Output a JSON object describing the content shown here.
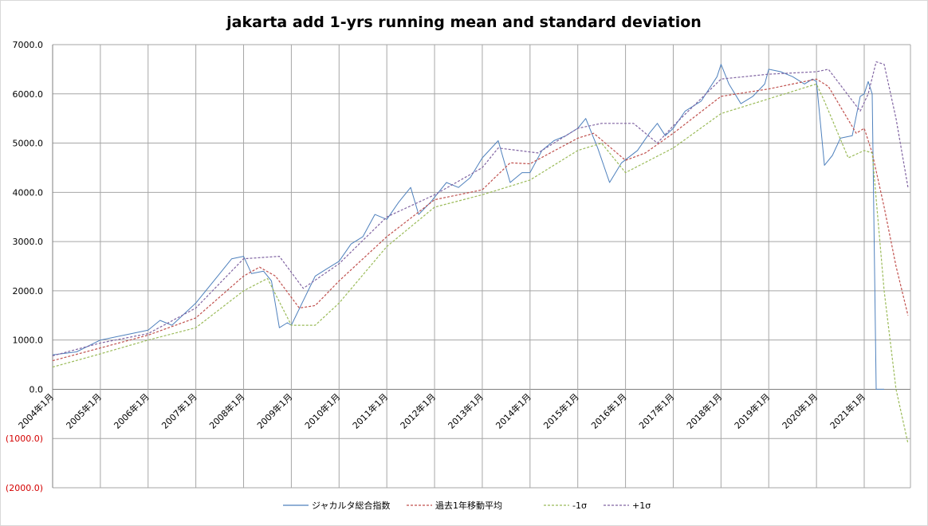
{
  "chart_data": {
    "type": "line",
    "title": "jakarta add 1-yrs running mean and standard deviation",
    "xlabel": "",
    "ylabel": "",
    "ylim": [
      -2000,
      7000
    ],
    "y_ticks": [
      7000,
      6000,
      5000,
      4000,
      3000,
      2000,
      1000,
      0,
      -1000,
      -2000
    ],
    "y_tick_labels": [
      "7000.0",
      "6000.0",
      "5000.0",
      "4000.0",
      "3000.0",
      "2000.0",
      "1000.0",
      "0.0",
      "(1000.0)",
      "(2000.0)"
    ],
    "x_tick_labels": [
      "2004年1月",
      "2005年1月",
      "2006年1月",
      "2007年1月",
      "2008年1月",
      "2009年1月",
      "2010年1月",
      "2011年1月",
      "2012年1月",
      "2013年1月",
      "2014年1月",
      "2015年1月",
      "2016年1月",
      "2017年1月",
      "2018年1月",
      "2019年1月",
      "2020年1月",
      "2021年1月"
    ],
    "grid": true,
    "legend_position": "bottom",
    "series": [
      {
        "name": "ジャカルタ総合指数",
        "color": "#4f81bd",
        "dash": "solid",
        "points": [
          [
            "2004-01",
            700
          ],
          [
            "2004-07",
            760
          ],
          [
            "2005-01",
            1000
          ],
          [
            "2005-07",
            1100
          ],
          [
            "2006-01",
            1200
          ],
          [
            "2006-04",
            1400
          ],
          [
            "2006-07",
            1300
          ],
          [
            "2007-01",
            1750
          ],
          [
            "2007-07",
            2350
          ],
          [
            "2007-10",
            2650
          ],
          [
            "2008-01",
            2700
          ],
          [
            "2008-03",
            2350
          ],
          [
            "2008-06",
            2400
          ],
          [
            "2008-08",
            2200
          ],
          [
            "2008-10",
            1250
          ],
          [
            "2008-12",
            1350
          ],
          [
            "2009-01",
            1300
          ],
          [
            "2009-04",
            1800
          ],
          [
            "2009-07",
            2300
          ],
          [
            "2009-10",
            2450
          ],
          [
            "2010-01",
            2600
          ],
          [
            "2010-04",
            2950
          ],
          [
            "2010-07",
            3100
          ],
          [
            "2010-10",
            3550
          ],
          [
            "2011-01",
            3450
          ],
          [
            "2011-04",
            3800
          ],
          [
            "2011-07",
            4100
          ],
          [
            "2011-09",
            3550
          ],
          [
            "2011-12",
            3800
          ],
          [
            "2012-04",
            4200
          ],
          [
            "2012-07",
            4100
          ],
          [
            "2012-10",
            4300
          ],
          [
            "2013-01",
            4700
          ],
          [
            "2013-05",
            5050
          ],
          [
            "2013-08",
            4200
          ],
          [
            "2013-11",
            4400
          ],
          [
            "2014-01",
            4400
          ],
          [
            "2014-04",
            4850
          ],
          [
            "2014-07",
            5050
          ],
          [
            "2014-10",
            5150
          ],
          [
            "2015-01",
            5300
          ],
          [
            "2015-03",
            5500
          ],
          [
            "2015-06",
            4900
          ],
          [
            "2015-09",
            4200
          ],
          [
            "2015-12",
            4600
          ],
          [
            "2016-04",
            4850
          ],
          [
            "2016-07",
            5200
          ],
          [
            "2016-09",
            5400
          ],
          [
            "2016-11",
            5150
          ],
          [
            "2017-01",
            5300
          ],
          [
            "2017-04",
            5650
          ],
          [
            "2017-08",
            5850
          ],
          [
            "2017-12",
            6350
          ],
          [
            "2018-01",
            6600
          ],
          [
            "2018-03",
            6200
          ],
          [
            "2018-06",
            5800
          ],
          [
            "2018-09",
            5950
          ],
          [
            "2018-12",
            6200
          ],
          [
            "2019-01",
            6500
          ],
          [
            "2019-04",
            6450
          ],
          [
            "2019-07",
            6350
          ],
          [
            "2019-10",
            6200
          ],
          [
            "2019-12",
            6300
          ],
          [
            "2020-01",
            6250
          ],
          [
            "2020-03",
            4550
          ],
          [
            "2020-05",
            4750
          ],
          [
            "2020-07",
            5100
          ],
          [
            "2020-10",
            5150
          ],
          [
            "2020-12",
            5950
          ],
          [
            "2021-01",
            6000
          ],
          [
            "2021-02",
            6250
          ],
          [
            "2021-03",
            6000
          ],
          [
            "2021-04",
            0
          ],
          [
            "2021-06",
            0
          ]
        ]
      },
      {
        "name": "過去1年移動平均",
        "color": "#c0504d",
        "dash": "dashed",
        "points": [
          [
            "2004-01",
            580
          ],
          [
            "2005-01",
            840
          ],
          [
            "2006-01",
            1100
          ],
          [
            "2007-01",
            1450
          ],
          [
            "2008-01",
            2300
          ],
          [
            "2008-05",
            2480
          ],
          [
            "2008-09",
            2300
          ],
          [
            "2009-03",
            1650
          ],
          [
            "2009-07",
            1700
          ],
          [
            "2010-01",
            2200
          ],
          [
            "2011-01",
            3100
          ],
          [
            "2012-01",
            3850
          ],
          [
            "2013-01",
            4050
          ],
          [
            "2013-08",
            4600
          ],
          [
            "2014-01",
            4580
          ],
          [
            "2015-01",
            5100
          ],
          [
            "2015-05",
            5200
          ],
          [
            "2016-01",
            4650
          ],
          [
            "2016-06",
            4800
          ],
          [
            "2017-01",
            5200
          ],
          [
            "2018-01",
            5950
          ],
          [
            "2019-01",
            6100
          ],
          [
            "2020-01",
            6300
          ],
          [
            "2020-04",
            6150
          ],
          [
            "2020-11",
            5200
          ],
          [
            "2021-01",
            5300
          ],
          [
            "2021-03",
            4800
          ],
          [
            "2021-06",
            3700
          ],
          [
            "2021-09",
            2500
          ],
          [
            "2021-12",
            1500
          ]
        ]
      },
      {
        "name": "-1σ",
        "color": "#9bbb59",
        "dash": "dashed",
        "points": [
          [
            "2004-01",
            450
          ],
          [
            "2005-01",
            720
          ],
          [
            "2006-01",
            1000
          ],
          [
            "2007-01",
            1250
          ],
          [
            "2008-01",
            2000
          ],
          [
            "2008-07",
            2250
          ],
          [
            "2009-01",
            1300
          ],
          [
            "2009-07",
            1300
          ],
          [
            "2010-01",
            1750
          ],
          [
            "2011-01",
            2900
          ],
          [
            "2012-01",
            3700
          ],
          [
            "2013-01",
            3950
          ],
          [
            "2014-01",
            4250
          ],
          [
            "2015-01",
            4850
          ],
          [
            "2015-07",
            5000
          ],
          [
            "2016-01",
            4400
          ],
          [
            "2017-01",
            4900
          ],
          [
            "2018-01",
            5600
          ],
          [
            "2019-01",
            5900
          ],
          [
            "2020-01",
            6200
          ],
          [
            "2020-03",
            5850
          ],
          [
            "2020-09",
            4700
          ],
          [
            "2021-01",
            4850
          ],
          [
            "2021-03",
            4800
          ],
          [
            "2021-06",
            2000
          ],
          [
            "2021-09",
            0
          ],
          [
            "2021-12",
            -1100
          ]
        ]
      },
      {
        "name": "+1σ",
        "color": "#8064a2",
        "dash": "dashed",
        "points": [
          [
            "2004-01",
            680
          ],
          [
            "2005-01",
            940
          ],
          [
            "2006-01",
            1130
          ],
          [
            "2007-01",
            1650
          ],
          [
            "2008-01",
            2650
          ],
          [
            "2008-10",
            2700
          ],
          [
            "2009-04",
            2050
          ],
          [
            "2010-01",
            2550
          ],
          [
            "2011-01",
            3500
          ],
          [
            "2012-01",
            3950
          ],
          [
            "2013-01",
            4500
          ],
          [
            "2013-05",
            4900
          ],
          [
            "2014-03",
            4800
          ],
          [
            "2015-01",
            5300
          ],
          [
            "2015-07",
            5400
          ],
          [
            "2016-03",
            5400
          ],
          [
            "2016-09",
            5000
          ],
          [
            "2017-01",
            5350
          ],
          [
            "2018-01",
            6300
          ],
          [
            "2019-01",
            6400
          ],
          [
            "2020-01",
            6450
          ],
          [
            "2020-04",
            6500
          ],
          [
            "2020-12",
            5650
          ],
          [
            "2021-02",
            6000
          ],
          [
            "2021-04",
            6650
          ],
          [
            "2021-06",
            6600
          ],
          [
            "2021-09",
            5500
          ],
          [
            "2021-12",
            4100
          ]
        ]
      }
    ]
  }
}
